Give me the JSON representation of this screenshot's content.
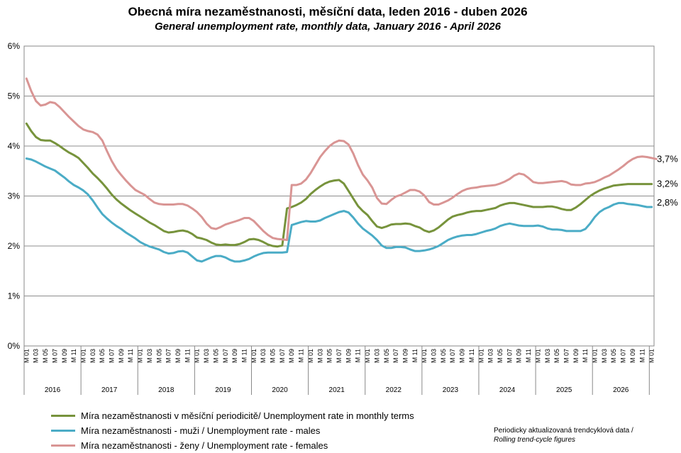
{
  "title": "Obecná míra nezaměstnanosti, měsíční data, leden 2016 - duben 2026",
  "subtitle": "General unemployment rate, monthly data, January 2016 - April 2026",
  "note": {
    "line1": "Periodicky aktualizovaná trendcyklová data /",
    "line2": "Rolling trend-cycle figures"
  },
  "chart_data": {
    "type": "line",
    "y_ticks": [
      "0%",
      "1%",
      "2%",
      "3%",
      "4%",
      "5%",
      "6%"
    ],
    "ylim": [
      0,
      6
    ],
    "grid": true,
    "month_ticks": [
      "M 01",
      "M 03",
      "M 05",
      "M 07",
      "M 09",
      "M 11"
    ],
    "years": [
      "2016",
      "2017",
      "2018",
      "2019",
      "2020",
      "2021",
      "2022",
      "2023",
      "2024",
      "2025",
      "2026"
    ],
    "x_start": "2016-01",
    "x_end": "2026-04",
    "legend_placement": "bottom-left",
    "end_labels": [
      "3,7%",
      "3,2%",
      "2,8%"
    ],
    "series": [
      {
        "name": "Míra nezaměstnanosti v měsíční periodicitě/ Unemployment rate in monthly terms",
        "color": "#77933c",
        "end_label": "3,2%",
        "values": [
          4.45,
          4.3,
          4.18,
          4.12,
          4.11,
          4.11,
          4.06,
          4.0,
          3.93,
          3.87,
          3.82,
          3.76,
          3.66,
          3.56,
          3.45,
          3.36,
          3.26,
          3.15,
          3.03,
          2.93,
          2.85,
          2.78,
          2.71,
          2.65,
          2.59,
          2.53,
          2.47,
          2.42,
          2.36,
          2.3,
          2.27,
          2.28,
          2.3,
          2.31,
          2.29,
          2.24,
          2.17,
          2.15,
          2.12,
          2.07,
          2.03,
          2.02,
          2.03,
          2.02,
          2.02,
          2.04,
          2.08,
          2.13,
          2.14,
          2.12,
          2.08,
          2.03,
          2.0,
          1.99,
          2.01,
          2.75,
          2.78,
          2.82,
          2.87,
          2.94,
          3.04,
          3.12,
          3.19,
          3.25,
          3.29,
          3.31,
          3.32,
          3.25,
          3.1,
          2.95,
          2.8,
          2.7,
          2.62,
          2.5,
          2.39,
          2.36,
          2.39,
          2.43,
          2.44,
          2.44,
          2.45,
          2.44,
          2.4,
          2.37,
          2.31,
          2.28,
          2.31,
          2.37,
          2.45,
          2.53,
          2.59,
          2.62,
          2.64,
          2.67,
          2.69,
          2.7,
          2.7,
          2.72,
          2.74,
          2.76,
          2.81,
          2.84,
          2.86,
          2.86,
          2.84,
          2.82,
          2.8,
          2.78,
          2.78,
          2.78,
          2.79,
          2.79,
          2.77,
          2.74,
          2.72,
          2.72,
          2.77,
          2.84,
          2.92,
          3.0,
          3.06,
          3.11,
          3.15,
          3.18,
          3.21,
          3.22,
          3.23,
          3.24,
          3.24,
          3.24,
          3.24,
          3.24,
          3.24
        ]
      },
      {
        "name": "Míra nezaměstnanosti - muži / Unemployment rate - males",
        "color": "#4bacc6",
        "end_label": "2,8%",
        "values": [
          3.75,
          3.73,
          3.69,
          3.64,
          3.59,
          3.55,
          3.51,
          3.44,
          3.37,
          3.29,
          3.22,
          3.17,
          3.11,
          3.03,
          2.91,
          2.77,
          2.64,
          2.55,
          2.47,
          2.4,
          2.34,
          2.27,
          2.21,
          2.15,
          2.08,
          2.03,
          1.99,
          1.96,
          1.93,
          1.88,
          1.85,
          1.86,
          1.89,
          1.9,
          1.87,
          1.79,
          1.71,
          1.69,
          1.73,
          1.77,
          1.8,
          1.8,
          1.77,
          1.72,
          1.69,
          1.69,
          1.71,
          1.74,
          1.79,
          1.83,
          1.86,
          1.87,
          1.87,
          1.87,
          1.87,
          1.88,
          2.42,
          2.45,
          2.48,
          2.5,
          2.49,
          2.49,
          2.51,
          2.56,
          2.6,
          2.64,
          2.68,
          2.7,
          2.67,
          2.57,
          2.45,
          2.35,
          2.28,
          2.21,
          2.12,
          2.01,
          1.96,
          1.96,
          1.98,
          1.98,
          1.97,
          1.93,
          1.9,
          1.9,
          1.91,
          1.93,
          1.96,
          2.0,
          2.06,
          2.12,
          2.16,
          2.19,
          2.21,
          2.22,
          2.22,
          2.24,
          2.27,
          2.3,
          2.32,
          2.35,
          2.4,
          2.43,
          2.45,
          2.43,
          2.41,
          2.4,
          2.4,
          2.4,
          2.41,
          2.39,
          2.35,
          2.33,
          2.33,
          2.32,
          2.3,
          2.3,
          2.3,
          2.3,
          2.34,
          2.45,
          2.58,
          2.68,
          2.74,
          2.78,
          2.83,
          2.86,
          2.86,
          2.84,
          2.83,
          2.82,
          2.8,
          2.78,
          2.78
        ]
      },
      {
        "name": "Míra nezaměstnanosti - ženy / Unemployment rate - females",
        "color": "#d99594",
        "end_label": "3,7%",
        "values": [
          5.35,
          5.1,
          4.9,
          4.81,
          4.83,
          4.88,
          4.86,
          4.78,
          4.68,
          4.58,
          4.49,
          4.4,
          4.33,
          4.3,
          4.28,
          4.23,
          4.11,
          3.9,
          3.7,
          3.54,
          3.42,
          3.31,
          3.21,
          3.12,
          3.07,
          3.02,
          2.94,
          2.87,
          2.84,
          2.83,
          2.83,
          2.83,
          2.84,
          2.84,
          2.81,
          2.75,
          2.68,
          2.58,
          2.45,
          2.36,
          2.34,
          2.38,
          2.43,
          2.46,
          2.49,
          2.52,
          2.56,
          2.56,
          2.5,
          2.4,
          2.3,
          2.22,
          2.16,
          2.14,
          2.13,
          2.12,
          3.22,
          3.22,
          3.25,
          3.33,
          3.46,
          3.62,
          3.78,
          3.9,
          4.0,
          4.07,
          4.11,
          4.1,
          4.03,
          3.85,
          3.62,
          3.43,
          3.31,
          3.17,
          2.96,
          2.85,
          2.84,
          2.92,
          2.99,
          3.02,
          3.07,
          3.12,
          3.12,
          3.09,
          3.01,
          2.88,
          2.83,
          2.83,
          2.87,
          2.91,
          2.97,
          3.04,
          3.1,
          3.14,
          3.16,
          3.17,
          3.19,
          3.2,
          3.21,
          3.22,
          3.25,
          3.29,
          3.34,
          3.41,
          3.45,
          3.43,
          3.36,
          3.28,
          3.26,
          3.26,
          3.27,
          3.28,
          3.29,
          3.3,
          3.28,
          3.23,
          3.22,
          3.22,
          3.25,
          3.26,
          3.28,
          3.32,
          3.37,
          3.41,
          3.47,
          3.53,
          3.6,
          3.68,
          3.74,
          3.78,
          3.79,
          3.78,
          3.76,
          3.74
        ]
      }
    ]
  }
}
